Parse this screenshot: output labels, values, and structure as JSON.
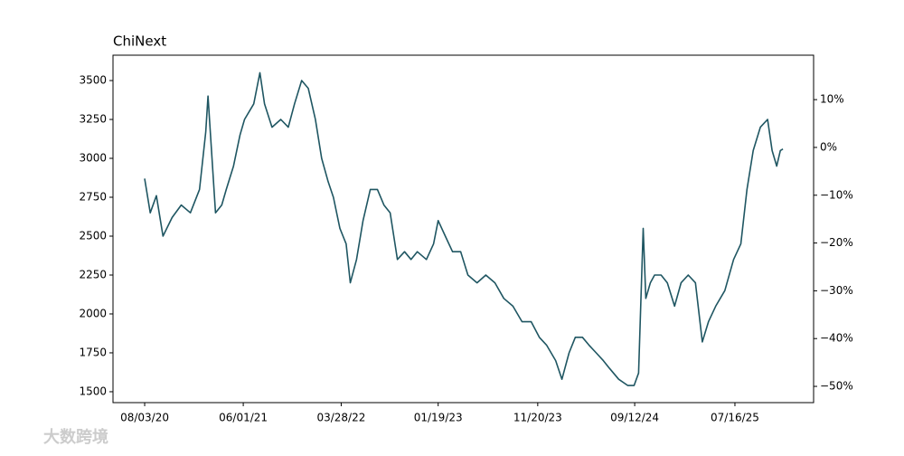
{
  "chart_data": {
    "type": "line",
    "title": "ChiNext",
    "watermark": "大数跨境",
    "x": [
      "2020-08-03",
      "2020-08-20",
      "2020-09-08",
      "2020-09-28",
      "2020-10-26",
      "2020-11-23",
      "2020-12-21",
      "2021-01-18",
      "2021-02-06",
      "2021-02-13",
      "2021-03-08",
      "2021-03-27",
      "2021-04-10",
      "2021-05-02",
      "2021-05-22",
      "2021-06-05",
      "2021-07-03",
      "2021-07-22",
      "2021-08-05",
      "2021-08-28",
      "2021-09-24",
      "2021-10-17",
      "2021-11-05",
      "2021-11-27",
      "2021-12-17",
      "2022-01-08",
      "2022-01-27",
      "2022-02-16",
      "2022-03-04",
      "2022-03-24",
      "2022-04-12",
      "2022-04-25",
      "2022-05-14",
      "2022-06-03",
      "2022-06-25",
      "2022-07-17",
      "2022-08-06",
      "2022-08-25",
      "2022-09-16",
      "2022-10-08",
      "2022-10-28",
      "2022-11-16",
      "2022-12-14",
      "2023-01-05",
      "2023-01-19",
      "2023-02-10",
      "2023-03-04",
      "2023-03-29",
      "2023-04-20",
      "2023-05-18",
      "2023-06-14",
      "2023-07-12",
      "2023-08-08",
      "2023-09-05",
      "2023-10-03",
      "2023-10-31",
      "2023-11-25",
      "2023-12-17",
      "2024-01-14",
      "2024-02-02",
      "2024-02-24",
      "2024-03-14",
      "2024-04-05",
      "2024-04-25",
      "2024-05-17",
      "2024-06-08",
      "2024-06-27",
      "2024-07-25",
      "2024-08-22",
      "2024-09-10",
      "2024-09-24",
      "2024-10-08",
      "2024-10-16",
      "2024-10-30",
      "2024-11-12",
      "2024-12-02",
      "2024-12-21",
      "2025-01-12",
      "2025-02-01",
      "2025-02-23",
      "2025-03-17",
      "2025-04-07",
      "2025-04-26",
      "2025-05-18",
      "2025-06-15",
      "2025-07-12",
      "2025-08-03",
      "2025-08-22",
      "2025-09-10",
      "2025-10-02",
      "2025-10-24",
      "2025-11-07",
      "2025-11-21",
      "2025-12-02",
      "2025-12-10"
    ],
    "series": [
      {
        "name": "ChiNext",
        "color": "#1f5662",
        "values": [
          2870,
          2650,
          2760,
          2500,
          2620,
          2700,
          2650,
          2800,
          3170,
          3400,
          2650,
          2700,
          2800,
          2950,
          3150,
          3250,
          3350,
          3550,
          3350,
          3200,
          3250,
          3200,
          3350,
          3500,
          3450,
          3250,
          3000,
          2850,
          2750,
          2550,
          2450,
          2200,
          2350,
          2600,
          2800,
          2800,
          2700,
          2650,
          2350,
          2400,
          2350,
          2400,
          2350,
          2450,
          2600,
          2500,
          2400,
          2400,
          2250,
          2200,
          2250,
          2200,
          2100,
          2050,
          1950,
          1950,
          1850,
          1800,
          1700,
          1580,
          1750,
          1850,
          1850,
          1800,
          1750,
          1700,
          1650,
          1580,
          1540,
          1540,
          1620,
          2550,
          2100,
          2200,
          2250,
          2250,
          2200,
          2050,
          2200,
          2250,
          2200,
          1820,
          1950,
          2050,
          2150,
          2350,
          2450,
          2800,
          3050,
          3200,
          3250,
          3050,
          2950,
          3050,
          3060
        ]
      }
    ],
    "xlim": [
      "2020-04-28",
      "2026-03-14"
    ],
    "xticks": [
      {
        "value": "2020-08-03",
        "label": "08/03/20"
      },
      {
        "value": "2021-06-01",
        "label": "06/01/21"
      },
      {
        "value": "2022-03-28",
        "label": "03/28/22"
      },
      {
        "value": "2023-01-19",
        "label": "01/19/23"
      },
      {
        "value": "2023-11-20",
        "label": "11/20/23"
      },
      {
        "value": "2024-09-12",
        "label": "09/12/24"
      },
      {
        "value": "2025-07-16",
        "label": "07/16/25"
      }
    ],
    "ylim": [
      1430,
      3663
    ],
    "yticks": [
      1500,
      1750,
      2000,
      2250,
      2500,
      2750,
      3000,
      3250,
      3500
    ],
    "y2lim": [
      -53.4,
      19.3
    ],
    "y2ticks": [
      {
        "value": -50,
        "label": "−50%"
      },
      {
        "value": -40,
        "label": "−40%"
      },
      {
        "value": -30,
        "label": "−30%"
      },
      {
        "value": -20,
        "label": "−20%"
      },
      {
        "value": -10,
        "label": "−10%"
      },
      {
        "value": 0,
        "label": "0%"
      },
      {
        "value": 10,
        "label": "10%"
      }
    ]
  }
}
